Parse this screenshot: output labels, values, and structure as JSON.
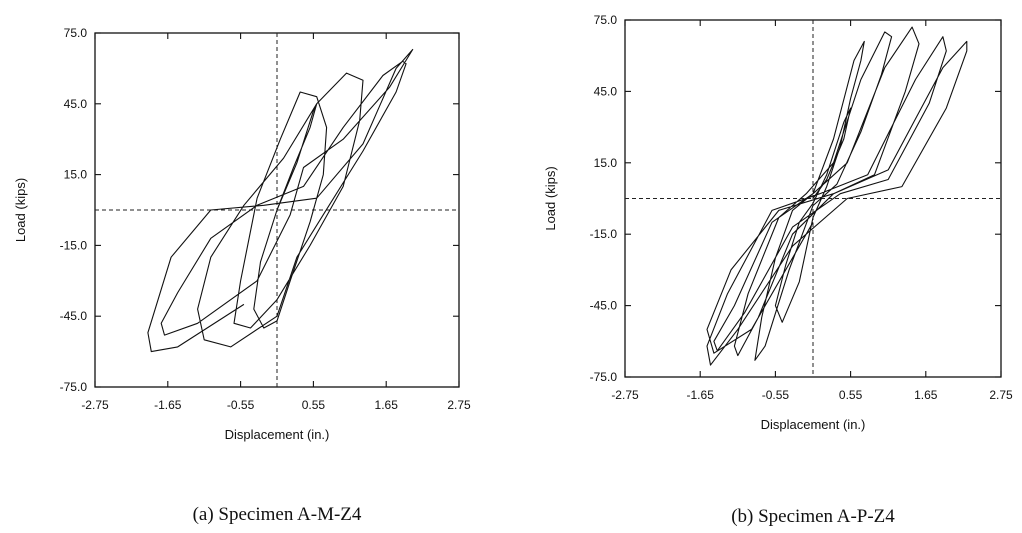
{
  "chart_data": [
    {
      "type": "line",
      "title": "",
      "caption": "(a)   Specimen A-M-Z4",
      "xlabel": "Displacement  (in.)",
      "ylabel": "Load  (kips)",
      "xlim": [
        -2.75,
        2.75
      ],
      "ylim": [
        -75,
        75
      ],
      "xticks": [
        "-2.75",
        "-1.65",
        "-0.55",
        "0.55",
        "1.65",
        "2.75"
      ],
      "yticks": [
        "75.0",
        "45.0",
        "15.0",
        "-15.0",
        "-45.0",
        "-75.0"
      ],
      "grid": false,
      "series": [
        {
          "x": [
            0,
            0.3,
            0.55,
            0.6,
            0.5,
            0.25,
            0,
            -0.25,
            -0.35,
            -0.2,
            0,
            0.2,
            0.5,
            0.7,
            0.75,
            0.6,
            0.35,
            0.05,
            -0.3,
            -0.55,
            -0.65,
            -0.4,
            0,
            0.5,
            1.0,
            1.25,
            1.3,
            1.05,
            0.6,
            0.1,
            -0.5,
            -1.0,
            -1.2,
            -1.1,
            -0.7,
            0,
            0.3,
            0.7,
            1.3,
            1.8,
            1.95,
            1.9,
            1.6,
            1.0,
            0.4,
            -0.3,
            -1.0,
            -1.5,
            -1.75,
            -1.7,
            -1.2,
            -0.3,
            0.2,
            0.4,
            1.0,
            1.7,
            2.05,
            2.05,
            1.8,
            1.3,
            0.6,
            -0.2,
            -1.0,
            -1.6,
            -1.95,
            -1.9,
            -1.5,
            -0.5
          ],
          "y": [
            0,
            20,
            42,
            45,
            35,
            18,
            0,
            -22,
            -42,
            -50,
            -47,
            -30,
            -5,
            15,
            35,
            48,
            50,
            30,
            5,
            -30,
            -48,
            -50,
            -38,
            -15,
            10,
            38,
            55,
            58,
            45,
            22,
            2,
            -20,
            -42,
            -55,
            -58,
            -45,
            -20,
            -2,
            25,
            50,
            62,
            63,
            57,
            35,
            10,
            2,
            -12,
            -35,
            -48,
            -53,
            -48,
            -30,
            -2,
            18,
            30,
            52,
            68,
            68,
            60,
            28,
            5,
            2,
            0,
            -20,
            -52,
            -60,
            -58,
            -40
          ]
        }
      ]
    },
    {
      "type": "line",
      "title": "",
      "caption": "(b)   Specimen A-P-Z4",
      "xlabel": "Displacement  (in.)",
      "ylabel": "Load  (kips)",
      "xlim": [
        -2.75,
        2.75
      ],
      "ylim": [
        -75,
        75
      ],
      "xticks": [
        "-2.75",
        "-1.65",
        "-0.55",
        "0.55",
        "1.65",
        "2.75"
      ],
      "yticks": [
        "75.0",
        "45.0",
        "15.0",
        "-15.0",
        "-45.0",
        "-75.0"
      ],
      "grid": false,
      "series": [
        {
          "x": [
            0,
            0.2,
            0.45,
            0.55,
            0.45,
            0.2,
            0,
            -0.2,
            -0.4,
            -0.55,
            -0.45,
            -0.2,
            0,
            0.2,
            0.4,
            0.55,
            0.7,
            0.75,
            0.6,
            0.3,
            0,
            -0.3,
            -0.55,
            -0.75,
            -0.85,
            -0.7,
            -0.35,
            0,
            0.35,
            0.7,
            1.0,
            1.15,
            1.05,
            0.7,
            0.3,
            -0.1,
            -0.5,
            -0.95,
            -1.15,
            -1.1,
            -0.8,
            -0.3,
            0.3,
            0.9,
            1.35,
            1.55,
            1.45,
            1.05,
            0.5,
            0,
            -0.6,
            -1.15,
            -1.45,
            -1.4,
            -1.0,
            -0.3,
            0.4,
            1.1,
            1.7,
            1.95,
            1.9,
            1.5,
            0.8,
            0.1,
            -0.6,
            -1.25,
            -1.55,
            -1.5,
            -1.1,
            -0.3,
            0.5,
            1.3,
            1.95,
            2.25,
            2.25,
            1.9,
            1.1,
            0.3,
            -0.5,
            -1.2,
            -1.55,
            -1.45,
            -0.9,
            0
          ],
          "y": [
            0,
            8,
            25,
            38,
            32,
            10,
            -2,
            -10,
            -28,
            -45,
            -52,
            -35,
            -8,
            5,
            22,
            42,
            58,
            66,
            58,
            25,
            2,
            -5,
            -25,
            -50,
            -68,
            -62,
            -30,
            -3,
            6,
            28,
            52,
            68,
            70,
            50,
            15,
            2,
            -8,
            -40,
            -62,
            -66,
            -50,
            -15,
            2,
            10,
            45,
            65,
            72,
            55,
            15,
            2,
            -10,
            -45,
            -60,
            -64,
            -48,
            -12,
            2,
            8,
            40,
            62,
            68,
            50,
            10,
            2,
            -5,
            -40,
            -62,
            -70,
            -55,
            -20,
            0,
            5,
            38,
            62,
            66,
            55,
            12,
            2,
            -5,
            -30,
            -55,
            -65,
            -55,
            -10
          ]
        }
      ]
    }
  ]
}
